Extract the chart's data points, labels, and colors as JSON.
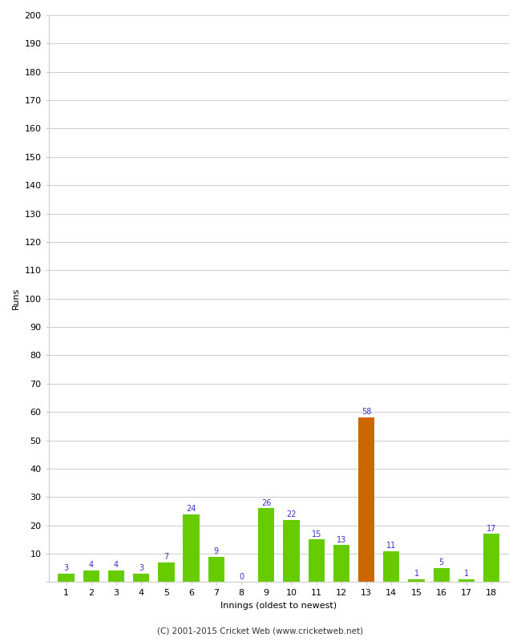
{
  "xlabel": "Innings (oldest to newest)",
  "ylabel": "Runs",
  "categories": [
    1,
    2,
    3,
    4,
    5,
    6,
    7,
    8,
    9,
    10,
    11,
    12,
    13,
    14,
    15,
    16,
    17,
    18
  ],
  "values": [
    3,
    4,
    4,
    3,
    7,
    24,
    9,
    0,
    26,
    22,
    15,
    13,
    58,
    11,
    1,
    5,
    1,
    17
  ],
  "bar_colors": [
    "#66cc00",
    "#66cc00",
    "#66cc00",
    "#66cc00",
    "#66cc00",
    "#66cc00",
    "#66cc00",
    "#66cc00",
    "#66cc00",
    "#66cc00",
    "#66cc00",
    "#66cc00",
    "#cc6600",
    "#66cc00",
    "#66cc00",
    "#66cc00",
    "#66cc00",
    "#66cc00"
  ],
  "ylim": [
    0,
    200
  ],
  "yticks": [
    0,
    10,
    20,
    30,
    40,
    50,
    60,
    70,
    80,
    90,
    100,
    110,
    120,
    130,
    140,
    150,
    160,
    170,
    180,
    190,
    200
  ],
  "label_color": "#3333cc",
  "label_fontsize": 7,
  "axis_tick_fontsize": 8,
  "ylabel_fontsize": 8,
  "xlabel_fontsize": 8,
  "footer": "(C) 2001-2015 Cricket Web (www.cricketweb.net)",
  "background_color": "#ffffff",
  "plot_bg_color": "#ffffff",
  "grid_color": "#cccccc",
  "bar_width": 0.65
}
